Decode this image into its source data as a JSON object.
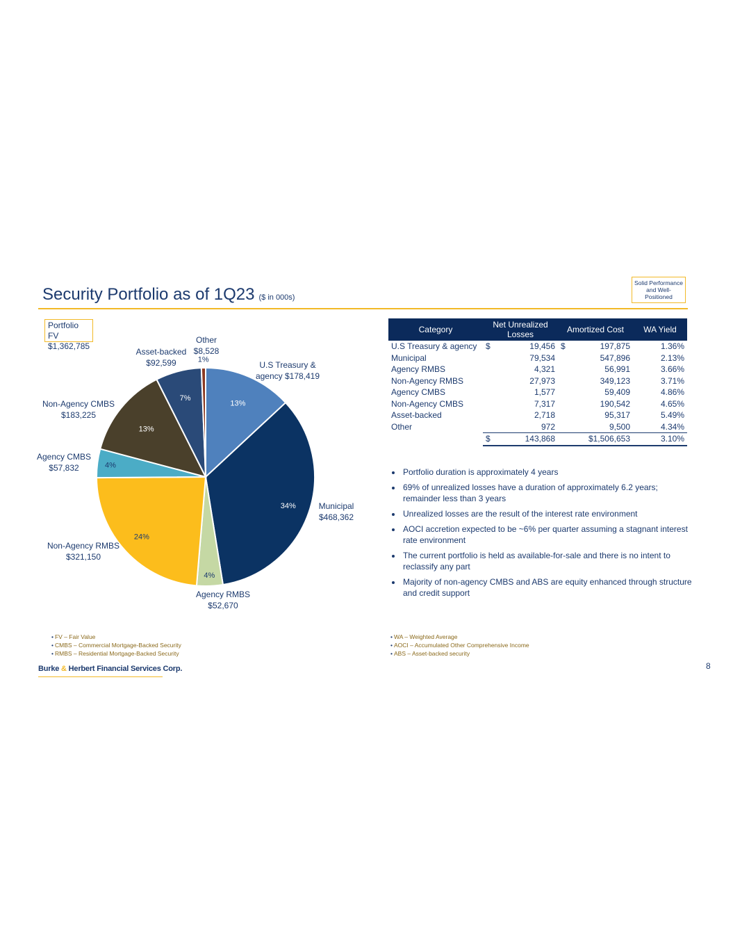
{
  "header": {
    "title": "Security Portfolio as of 1Q23",
    "subtitle": "($ in 000s)",
    "badge": "Solid Performance and Well-Positioned"
  },
  "portfolio_fv": {
    "line1": "Portfolio FV",
    "line2": "$1,362,785"
  },
  "chart_data": {
    "type": "pie",
    "title": "",
    "slices": [
      {
        "name": "U.S Treasury & agency",
        "label_lines": [
          "U.S Treasury &",
          "agency  $178,419"
        ],
        "value": 178419,
        "pct": "13%",
        "color": "#4f81bd",
        "pct_color": "#ffffff"
      },
      {
        "name": "Municipal",
        "label_lines": [
          "Municipal",
          "$468,362"
        ],
        "value": 468362,
        "pct": "34%",
        "color": "#0b3363",
        "pct_color": "#ffffff"
      },
      {
        "name": "Agency RMBS",
        "label_lines": [
          "Agency RMBS",
          "$52,670"
        ],
        "value": 52670,
        "pct": "4%",
        "color": "#c5d8a4",
        "pct_color": "#1c3a6e"
      },
      {
        "name": "Non-Agency RMBS",
        "label_lines": [
          "Non-Agency RMBS",
          "$321,150"
        ],
        "value": 321150,
        "pct": "24%",
        "color": "#fcbd1c",
        "pct_color": "#1c3a6e"
      },
      {
        "name": "Agency CMBS",
        "label_lines": [
          "Agency CMBS",
          "$57,832"
        ],
        "value": 57832,
        "pct": "4%",
        "color": "#4bacc6",
        "pct_color": "#1c3a6e"
      },
      {
        "name": "Non-Agency CMBS",
        "label_lines": [
          "Non-Agency CMBS",
          "$183,225"
        ],
        "value": 183225,
        "pct": "13%",
        "color": "#4a402b",
        "pct_color": "#ffffff"
      },
      {
        "name": "Asset-backed",
        "label_lines": [
          "Asset-backed",
          "$92,599"
        ],
        "value": 92599,
        "pct": "7%",
        "color": "#2a4a78",
        "pct_color": "#ffffff"
      },
      {
        "name": "Other",
        "label_lines": [
          "Other",
          "$8,528"
        ],
        "value": 8528,
        "pct": "1%",
        "color": "#8b3a22",
        "pct_color": "#1c3a6e"
      }
    ]
  },
  "table": {
    "headers": [
      "Category",
      "Net Unrealized Losses",
      "Amortized Cost",
      "WA Yield"
    ],
    "rows": [
      {
        "category": "U.S Treasury & agency",
        "cur1": "$",
        "losses": "19,456",
        "cur2": "$",
        "cost": "197,875",
        "yield": "1.36%"
      },
      {
        "category": "Municipal",
        "cur1": "",
        "losses": "79,534",
        "cur2": "",
        "cost": "547,896",
        "yield": "2.13%"
      },
      {
        "category": "Agency RMBS",
        "cur1": "",
        "losses": "4,321",
        "cur2": "",
        "cost": "56,991",
        "yield": "3.66%"
      },
      {
        "category": "Non-Agency RMBS",
        "cur1": "",
        "losses": "27,973",
        "cur2": "",
        "cost": "349,123",
        "yield": "3.71%"
      },
      {
        "category": "Agency CMBS",
        "cur1": "",
        "losses": "1,577",
        "cur2": "",
        "cost": "59,409",
        "yield": "4.86%"
      },
      {
        "category": "Non-Agency CMBS",
        "cur1": "",
        "losses": "7,317",
        "cur2": "",
        "cost": "190,542",
        "yield": "4.65%"
      },
      {
        "category": "Asset-backed",
        "cur1": "",
        "losses": "2,718",
        "cur2": "",
        "cost": "95,317",
        "yield": "5.49%"
      },
      {
        "category": "Other",
        "cur1": "",
        "losses": "972",
        "cur2": "",
        "cost": "9,500",
        "yield": "4.34%"
      }
    ],
    "total": {
      "cur1": "$",
      "losses": "143,868",
      "cost": "$1,506,653",
      "yield": "3.10%"
    }
  },
  "bullets": [
    "Portfolio duration is approximately 4 years",
    "69% of unrealized losses have a duration of approximately 6.2 years; remainder less than 3 years",
    "Unrealized losses are the result of the interest rate environment",
    "AOCI accretion expected to be ~6% per quarter assuming a stagnant interest rate environment",
    "The current portfolio is held as available-for-sale and there is no intent to reclassify any part",
    "Majority of non-agency CMBS and ABS are equity enhanced through structure and credit support"
  ],
  "footnotes_left": [
    "FV – Fair Value",
    "CMBS – Commercial Mortgage-Backed Security",
    "RMBS – Residential Mortgage-Backed Security"
  ],
  "footnotes_right": [
    "WA – Weighted Average",
    "AOCI – Accumulated Other Comprehensive Income",
    "ABS – Asset-backed security"
  ],
  "footer": {
    "logo_part1": "Burke ",
    "logo_amp": "&",
    "logo_part2": " Herbert Financial Services Corp.",
    "page_number": "8"
  }
}
